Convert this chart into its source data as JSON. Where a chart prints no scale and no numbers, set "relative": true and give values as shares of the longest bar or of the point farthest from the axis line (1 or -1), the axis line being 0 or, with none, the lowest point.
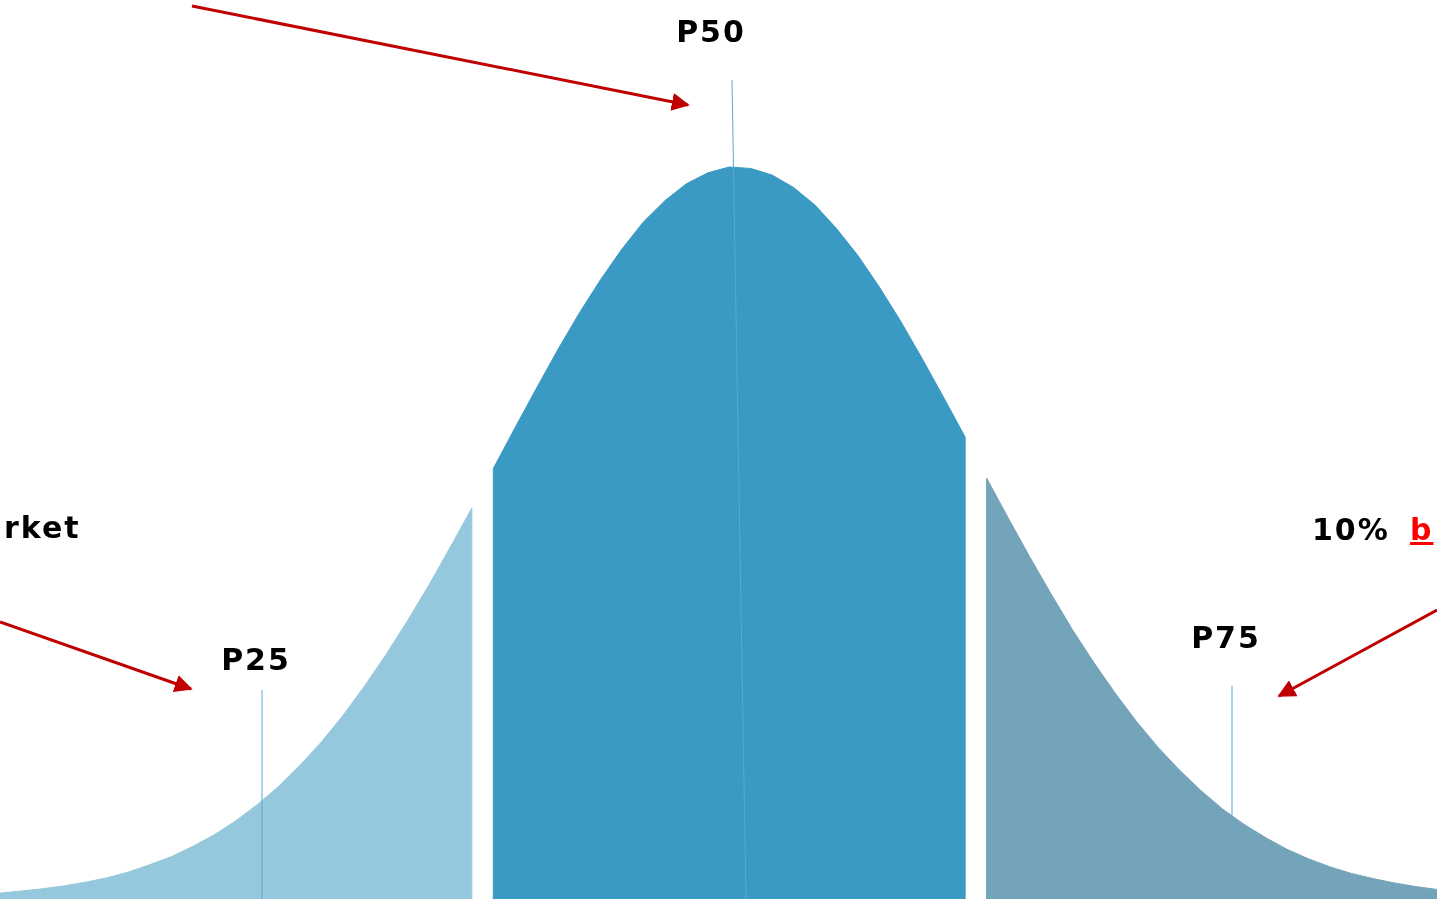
{
  "chart_data": {
    "type": "area",
    "relative": true,
    "categories": [
      null,
      null,
      null,
      null,
      null,
      null,
      null,
      null,
      null,
      null,
      null,
      null,
      null,
      null,
      null,
      null,
      null,
      null,
      null,
      null,
      null,
      null,
      null,
      null,
      null,
      null,
      null,
      null,
      null,
      null,
      null,
      null,
      null,
      null,
      null,
      null,
      null,
      null,
      null,
      null,
      null,
      null,
      null,
      null,
      null,
      null,
      null,
      null,
      null,
      null,
      null,
      null,
      null,
      null,
      null,
      null,
      null,
      null,
      null,
      null,
      null,
      null,
      null,
      null,
      null,
      null,
      null,
      null
    ],
    "series": [
      {
        "color": "#96c8dd",
        "values": [
          0.008,
          0.011,
          0.014,
          0.018,
          0.023,
          0.029,
          0.037,
          0.047,
          0.058,
          0.072,
          0.088,
          0.107,
          0.129,
          0.154,
          0.183,
          0.215,
          0.251,
          0.291,
          0.334,
          0.38,
          0.429,
          0.481,
          0.534,
          null,
          null,
          null,
          null,
          null,
          null,
          null,
          null,
          null,
          null,
          null,
          null,
          null,
          null,
          null,
          null,
          null,
          null,
          null,
          null,
          null,
          null,
          null,
          null,
          null,
          null,
          null,
          null,
          null,
          null,
          null,
          null,
          null,
          null,
          null,
          null,
          null,
          null,
          null,
          null,
          null,
          null,
          null,
          null,
          null
        ]
      },
      {
        "color": "#3a9ac3",
        "values": [
          null,
          null,
          null,
          null,
          null,
          null,
          null,
          null,
          null,
          null,
          null,
          null,
          null,
          null,
          null,
          null,
          null,
          null,
          null,
          null,
          null,
          null,
          null,
          0.588,
          0.643,
          0.697,
          0.75,
          0.8,
          0.846,
          0.888,
          0.925,
          0.954,
          0.977,
          0.992,
          1,
          0.998,
          0.989,
          0.972,
          0.948,
          0.916,
          0.879,
          0.836,
          0.789,
          0.738,
          0.685,
          0.631,
          null,
          null,
          null,
          null,
          null,
          null,
          null,
          null,
          null,
          null,
          null,
          null,
          null,
          null,
          null,
          null,
          null,
          null,
          null,
          null,
          null,
          null
        ]
      },
      {
        "color": "#74a4b9",
        "values": [
          null,
          null,
          null,
          null,
          null,
          null,
          null,
          null,
          null,
          null,
          null,
          null,
          null,
          null,
          null,
          null,
          null,
          null,
          null,
          null,
          null,
          null,
          null,
          null,
          null,
          null,
          null,
          null,
          null,
          null,
          null,
          null,
          null,
          null,
          null,
          null,
          null,
          null,
          null,
          null,
          null,
          null,
          null,
          null,
          null,
          null,
          0.575,
          0.521,
          0.468,
          0.417,
          0.368,
          0.323,
          0.281,
          0.242,
          0.207,
          0.176,
          0.148,
          0.123,
          0.102,
          0.084,
          0.068,
          0.055,
          0.044,
          0.035,
          0.028,
          0.022,
          0.017,
          0.013
        ]
      }
    ],
    "annotations": [
      "P50",
      "rket",
      "P25",
      "10%",
      "b",
      "P75"
    ]
  }
}
